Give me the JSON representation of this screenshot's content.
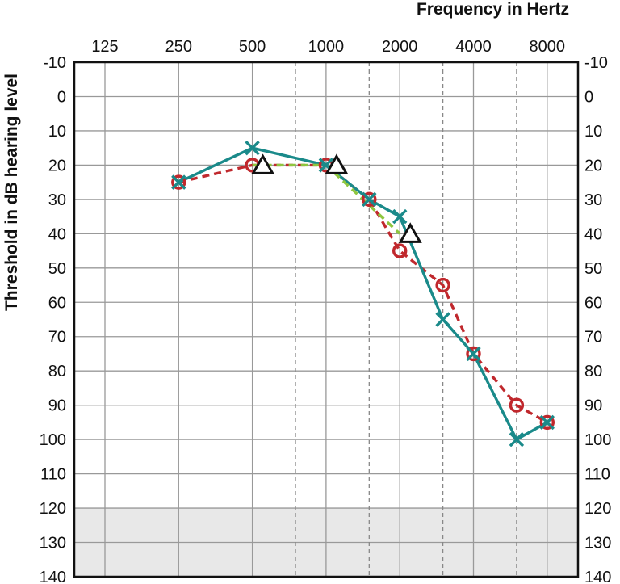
{
  "chart_data": {
    "type": "line",
    "title": "",
    "xlabel": "Frequency in Hertz",
    "ylabel": "Threshold in dB hearing level",
    "x_scale": "log2 (octave)",
    "x_ticks": [
      "125",
      "250",
      "500",
      "1000",
      "2000",
      "4000",
      "8000"
    ],
    "x_ticks_half_octave": [
      750,
      1500,
      3000,
      6000
    ],
    "y_ticks": [
      "-10",
      "0",
      "10",
      "20",
      "30",
      "40",
      "50",
      "60",
      "70",
      "80",
      "90",
      "100",
      "110",
      "120",
      "130",
      "140"
    ],
    "ylim": [
      140,
      -10
    ],
    "y_inverted": true,
    "shaded_region": [
      120,
      140
    ],
    "grid": true,
    "colors": {
      "teal": "#1a8a8a",
      "red": "#c0282d",
      "green": "#8ec63f",
      "black": "#111111",
      "grid": "#999999",
      "shade": "#e8e8e8"
    },
    "series": [
      {
        "marker": "x",
        "line_style": "solid",
        "color": "#1a8a8a",
        "x": [
          250,
          500,
          1000,
          1500,
          2000,
          3000,
          4000,
          6000,
          8000
        ],
        "values": [
          25,
          15,
          20,
          30,
          35,
          65,
          75,
          100,
          95
        ]
      },
      {
        "marker": "o",
        "line_style": "dashed",
        "color": "#c0282d",
        "x": [
          250,
          500,
          1000,
          1500,
          2000,
          3000,
          4000,
          6000,
          8000
        ],
        "values": [
          25,
          20,
          20,
          30,
          45,
          55,
          75,
          90,
          95
        ]
      },
      {
        "marker": "triangle",
        "line_style": "dashed",
        "color": "#8ec63f",
        "x": [
          500,
          1000,
          2000
        ],
        "values": [
          20,
          20,
          40
        ]
      }
    ]
  }
}
